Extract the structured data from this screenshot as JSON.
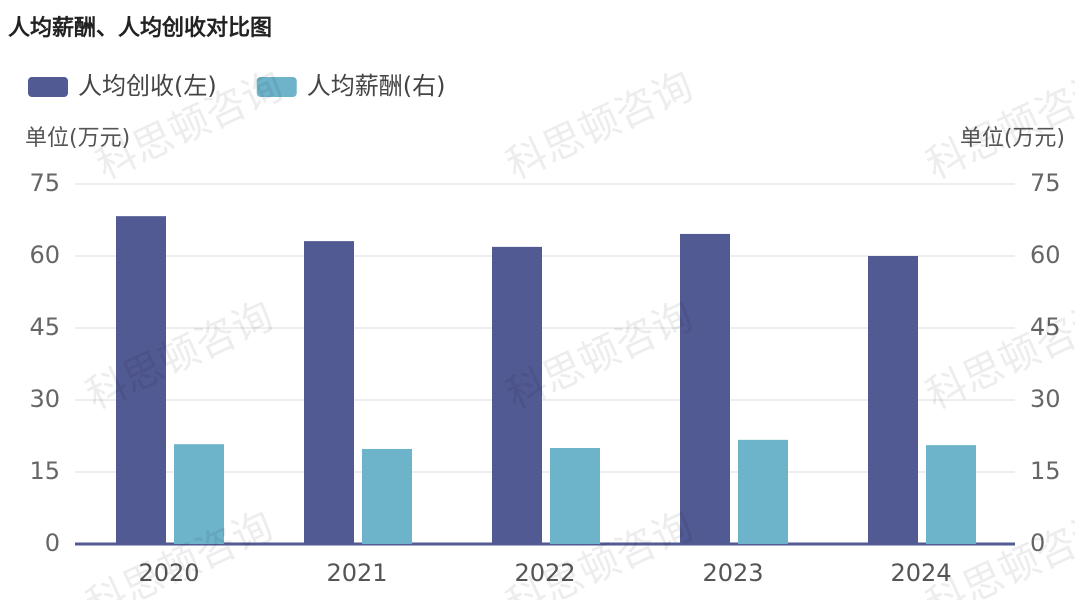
{
  "chart_data": {
    "type": "bar",
    "title": "人均薪酬、人均创收对比图",
    "watermark": "科思顿咨询",
    "ylabel": "单位(万元)",
    "y2label": "单位(万元)",
    "categories": [
      "2020",
      "2021",
      "2022",
      "2023",
      "2024"
    ],
    "series": [
      {
        "name": "人均创收(左)",
        "color": "#525a93",
        "values": [
          68.3,
          63.1,
          61.9,
          64.6,
          60.0
        ]
      },
      {
        "name": "人均薪酬(右)",
        "color": "#6db3c9",
        "axis": "y2",
        "values": [
          20.8,
          19.8,
          20.0,
          21.7,
          20.6
        ]
      }
    ],
    "ylim": [
      0,
      75
    ],
    "yticks": [
      0,
      15,
      30,
      45,
      60,
      75
    ],
    "y2lim": [
      0,
      75
    ],
    "y2ticks": [
      0,
      15,
      30,
      45,
      60,
      75
    ],
    "grid": true,
    "legend": "top-left"
  }
}
